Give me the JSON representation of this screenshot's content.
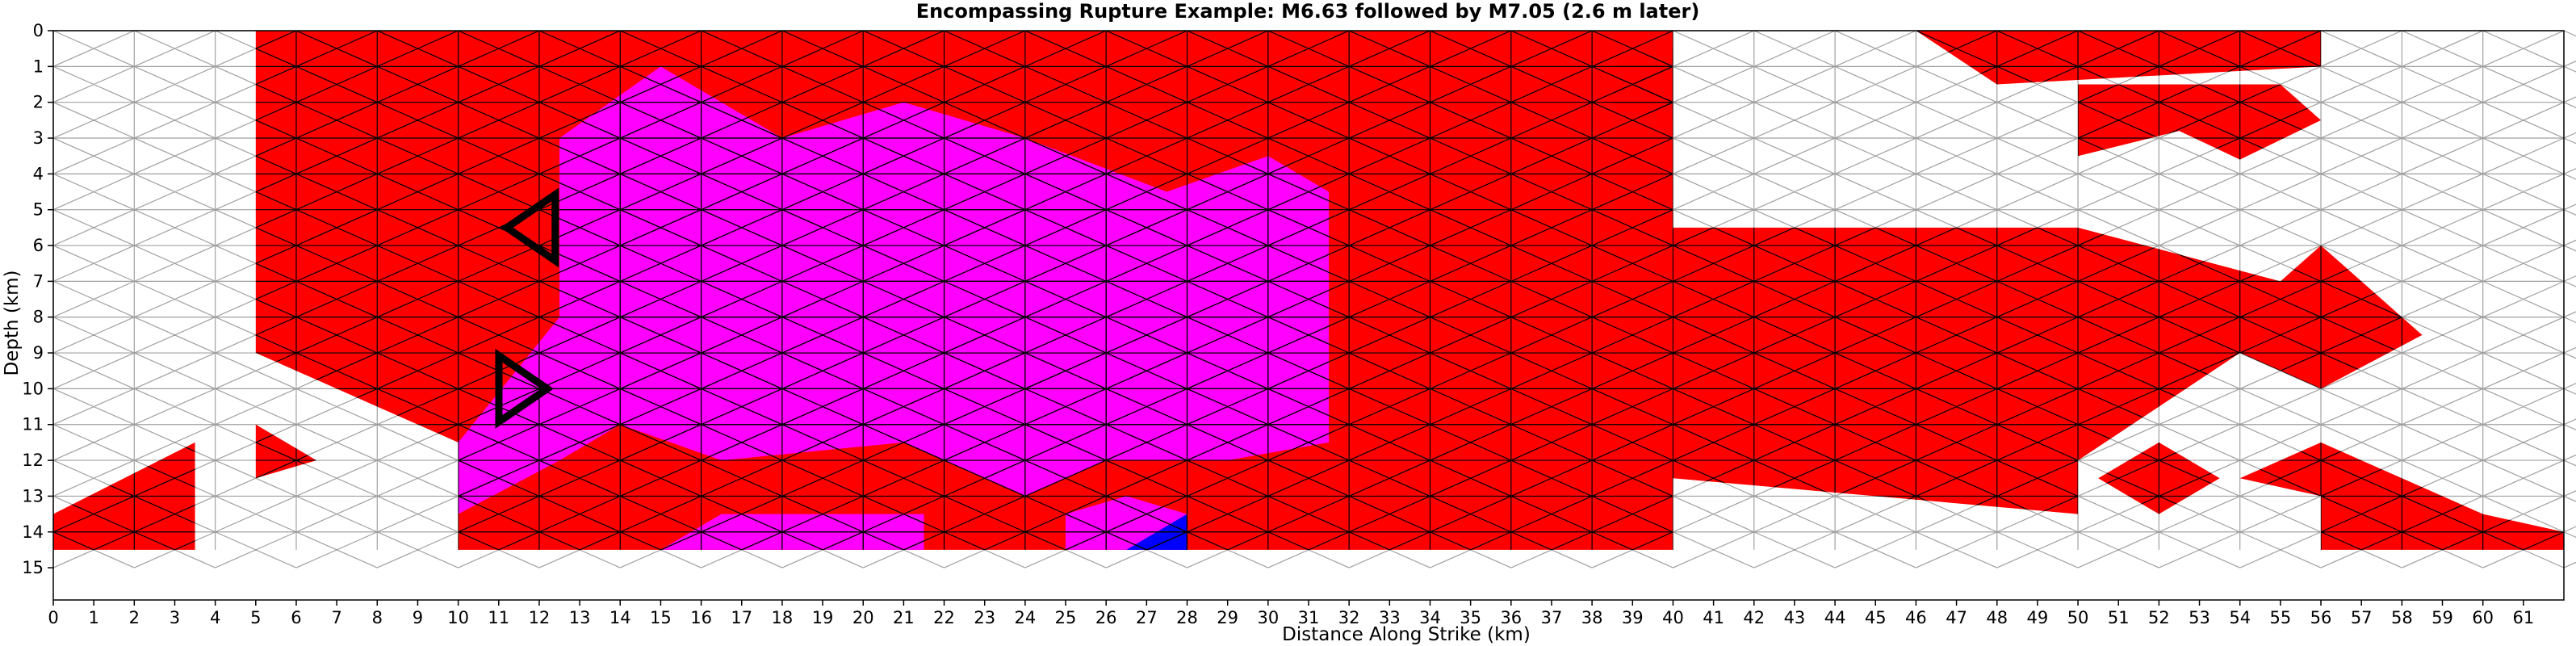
{
  "chart_data": {
    "type": "heatmap",
    "title": "Encompassing Rupture Example: M6.63 followed by M7.05 (2.6 m later)",
    "xlabel": "Distance Along Strike (km)",
    "ylabel": "Depth (km)",
    "xlim": [
      0,
      62
    ],
    "ylim": [
      15.9,
      0
    ],
    "x_ticks": [
      "0",
      "1",
      "2",
      "3",
      "4",
      "5",
      "6",
      "7",
      "8",
      "9",
      "10",
      "11",
      "12",
      "13",
      "14",
      "15",
      "16",
      "17",
      "18",
      "19",
      "20",
      "21",
      "22",
      "23",
      "24",
      "25",
      "26",
      "27",
      "28",
      "29",
      "30",
      "31",
      "32",
      "33",
      "34",
      "35",
      "36",
      "37",
      "38",
      "39",
      "40",
      "41",
      "42",
      "43",
      "44",
      "45",
      "46",
      "47",
      "48",
      "49",
      "50",
      "51",
      "52",
      "53",
      "54",
      "55",
      "56",
      "57",
      "58",
      "59",
      "60",
      "61"
    ],
    "y_ticks": [
      "0",
      "1",
      "2",
      "3",
      "4",
      "5",
      "6",
      "7",
      "8",
      "9",
      "10",
      "11",
      "12",
      "13",
      "14",
      "15"
    ],
    "colors": {
      "first_rupture": "#ff0000",
      "second_rupture": "#ff00ff",
      "overlap_patch": "#0000ff",
      "mesh_line": "#a0a0a0",
      "ruptured_edge": "#000000",
      "hypocenter_marker": "#000000"
    },
    "mesh_extent": {
      "x": [
        0,
        62
      ],
      "depth": [
        0,
        14.5
      ]
    },
    "regions": [
      {
        "series": "first_rupture",
        "polygon": [
          [
            5,
            0
          ],
          [
            40,
            0
          ],
          [
            40,
            14.5
          ],
          [
            10,
            14.5
          ],
          [
            10,
            11.5
          ],
          [
            5,
            9
          ]
        ]
      },
      {
        "series": "first_rupture",
        "polygon": [
          [
            40,
            5.5
          ],
          [
            50,
            5.5
          ],
          [
            50,
            13.5
          ],
          [
            40,
            12.5
          ]
        ]
      },
      {
        "series": "first_rupture",
        "polygon": [
          [
            46,
            0
          ],
          [
            56,
            0
          ],
          [
            56,
            1
          ],
          [
            48,
            1.5
          ]
        ]
      },
      {
        "series": "first_rupture",
        "polygon": [
          [
            50,
            1.5
          ],
          [
            55,
            1.5
          ],
          [
            56,
            2.5
          ],
          [
            54,
            3.6
          ],
          [
            52.5,
            2.8
          ],
          [
            50,
            3.5
          ]
        ]
      },
      {
        "series": "first_rupture",
        "polygon": [
          [
            50,
            5.5
          ],
          [
            55,
            7
          ],
          [
            56,
            6
          ],
          [
            57.5,
            7.5
          ],
          [
            58.5,
            8.5
          ],
          [
            56,
            10
          ],
          [
            54,
            9
          ],
          [
            50,
            12
          ]
        ]
      },
      {
        "series": "first_rupture",
        "polygon": [
          [
            0,
            13.5
          ],
          [
            3.5,
            11.5
          ],
          [
            3.5,
            14.5
          ],
          [
            0,
            14.5
          ]
        ]
      },
      {
        "series": "first_rupture",
        "polygon": [
          [
            5,
            11
          ],
          [
            6.5,
            12
          ],
          [
            5,
            12.5
          ]
        ]
      },
      {
        "series": "first_rupture",
        "polygon": [
          [
            50.5,
            12.5
          ],
          [
            52,
            11.5
          ],
          [
            53.5,
            12.5
          ],
          [
            52,
            13.5
          ]
        ]
      },
      {
        "series": "first_rupture",
        "polygon": [
          [
            54,
            12.5
          ],
          [
            56,
            11.5
          ],
          [
            60,
            13.5
          ],
          [
            62,
            14
          ],
          [
            62,
            14.5
          ],
          [
            56,
            14.5
          ],
          [
            56,
            13
          ]
        ]
      },
      {
        "series": "first_rupture",
        "polygon": [
          [
            38.5,
            1
          ],
          [
            40,
            0.5
          ],
          [
            40,
            2.5
          ],
          [
            38.5,
            2
          ]
        ]
      },
      {
        "series": "second_rupture",
        "polygon": [
          [
            12.5,
            3
          ],
          [
            15,
            1
          ],
          [
            18,
            3
          ],
          [
            21,
            2
          ],
          [
            24,
            3
          ],
          [
            27.5,
            4.5
          ],
          [
            30,
            3.5
          ],
          [
            31.5,
            4.5
          ],
          [
            31.5,
            11.5
          ],
          [
            29,
            12
          ],
          [
            26,
            12
          ],
          [
            24,
            13
          ],
          [
            21,
            11.5
          ],
          [
            16.5,
            12
          ],
          [
            14,
            11
          ],
          [
            12.5,
            12
          ],
          [
            10,
            13.5
          ],
          [
            10,
            11.5
          ],
          [
            12.5,
            8
          ]
        ]
      },
      {
        "series": "second_rupture",
        "polygon": [
          [
            15,
            14.5
          ],
          [
            16.5,
            13.5
          ],
          [
            21.5,
            13.5
          ],
          [
            21.5,
            14.5
          ]
        ]
      },
      {
        "series": "second_rupture",
        "polygon": [
          [
            25,
            14.5
          ],
          [
            25,
            13.5
          ],
          [
            26.5,
            13
          ],
          [
            28,
            13.5
          ],
          [
            28,
            14.5
          ]
        ]
      },
      {
        "series": "overlap_patch",
        "polygon": [
          [
            26.5,
            14.5
          ],
          [
            28,
            13.5
          ],
          [
            28,
            14.5
          ]
        ]
      }
    ],
    "hypocenter_markers": [
      {
        "depth": 5.5,
        "x": 11.2,
        "direction": "left"
      },
      {
        "depth": 10,
        "x": 12.2,
        "direction": "right"
      }
    ]
  }
}
